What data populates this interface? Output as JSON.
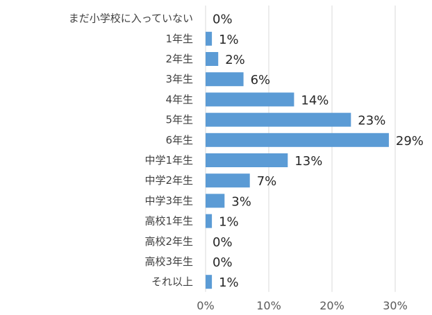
{
  "chart_data": {
    "type": "bar",
    "orientation": "horizontal",
    "categories": [
      "まだ小学校に入っていない",
      "1年生",
      "2年生",
      "3年生",
      "4年生",
      "5年生",
      "6年生",
      "中学1年生",
      "中学2年生",
      "中学3年生",
      "高校1年生",
      "高校2年生",
      "高校3年生",
      "それ以上"
    ],
    "values": [
      0,
      1,
      2,
      6,
      14,
      23,
      29,
      13,
      7,
      3,
      1,
      0,
      0,
      1
    ],
    "value_labels": [
      "0%",
      "1%",
      "2%",
      "6%",
      "14%",
      "23%",
      "29%",
      "13%",
      "7%",
      "3%",
      "1%",
      "0%",
      "0%",
      "1%"
    ],
    "x_ticks": [
      0,
      10,
      20,
      30
    ],
    "x_tick_labels": [
      "0%",
      "10%",
      "20%",
      "30%"
    ],
    "xlim": [
      0,
      30
    ],
    "title": "",
    "xlabel": "",
    "ylabel": "",
    "grid": "vertical",
    "legend": "none",
    "bar_color": "#5b9bd5"
  }
}
